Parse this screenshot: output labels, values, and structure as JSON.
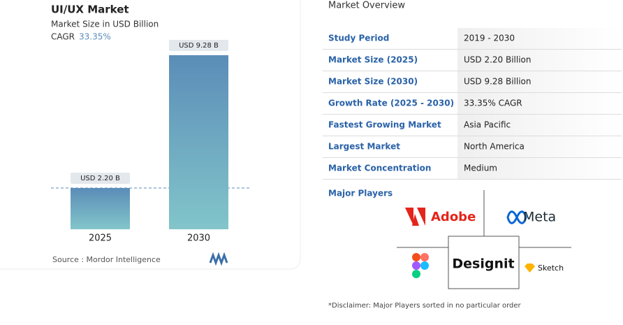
{
  "chart_data": {
    "type": "bar",
    "title": "UI/UX Market",
    "subtitle": "Market Size in USD Billion",
    "cagr_label": "CAGR",
    "cagr_value": "33.35%",
    "categories": [
      "2025",
      "2030"
    ],
    "values": [
      2.2,
      9.28
    ],
    "value_labels": [
      "USD 2.20 B",
      "USD 9.28 B"
    ],
    "source": "Source : Mordor Intelligence"
  },
  "overview": {
    "title": "Market Overview",
    "rows": [
      [
        "Study Period",
        "2019 - 2030"
      ],
      [
        "Market Size (2025)",
        "USD 2.20 Billion"
      ],
      [
        "Market Size (2030)",
        "USD 9.28 Billion"
      ],
      [
        "Growth Rate (2025 - 2030)",
        "33.35% CAGR"
      ],
      [
        "Fastest Growing Market",
        "Asia Pacific"
      ],
      [
        "Largest Market",
        "North America"
      ],
      [
        "Market Concentration",
        "Medium"
      ]
    ],
    "players_label": "Major Players",
    "players": [
      "Adobe",
      "Meta",
      "Designit",
      "Sketch"
    ],
    "disclaimer": "*Disclaimer: Major Players sorted in no particular order"
  }
}
